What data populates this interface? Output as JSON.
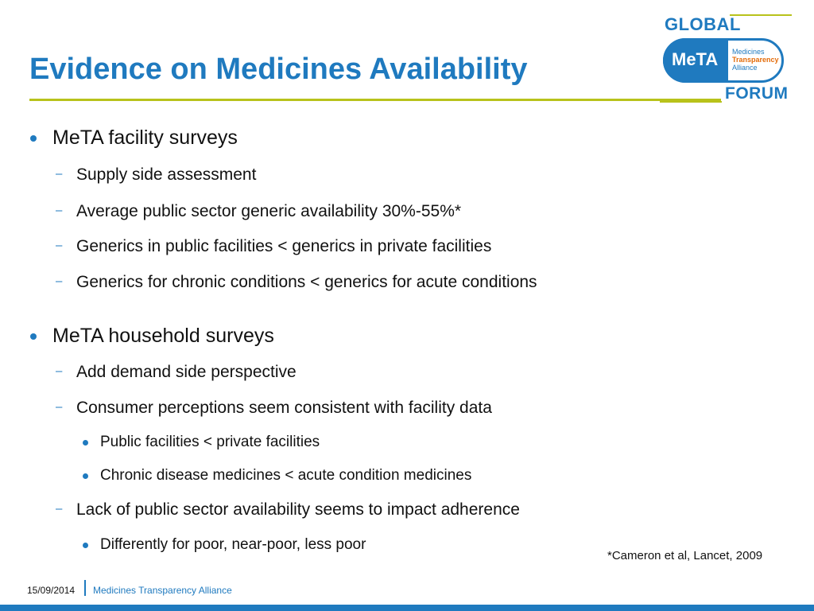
{
  "slide": {
    "title": "Evidence on Medicines Availability"
  },
  "logo": {
    "global": "GLOBAL",
    "meta": "MeTA",
    "sub_line1": "Medicines",
    "sub_line2": "Transparency",
    "sub_line3": "Alliance",
    "forum": "FORUM"
  },
  "content": {
    "facility": {
      "heading": "MeTA facility surveys",
      "items": [
        "Supply side assessment",
        "Average public sector generic availability 30%-55%*",
        "Generics in public facilities < generics in private facilities",
        "Generics for chronic conditions < generics for acute conditions"
      ]
    },
    "household": {
      "heading": "MeTA household surveys",
      "item1": "Add demand side perspective",
      "item2": "Consumer perceptions seem consistent with facility data",
      "item2_sub": [
        "Public facilities < private facilities",
        "Chronic disease medicines < acute condition medicines"
      ],
      "item3": "Lack of public sector availability seems to impact adherence",
      "item3_sub": [
        "Differently for poor, near-poor, less poor"
      ]
    },
    "footnote": "*Cameron et al, Lancet, 2009"
  },
  "footer": {
    "date": "15/09/2014",
    "organization": "Medicines Transparency Alliance"
  },
  "colors": {
    "accent_blue": "#1f7abf",
    "accent_green": "#b8c21b",
    "accent_orange": "#e46c0a"
  }
}
